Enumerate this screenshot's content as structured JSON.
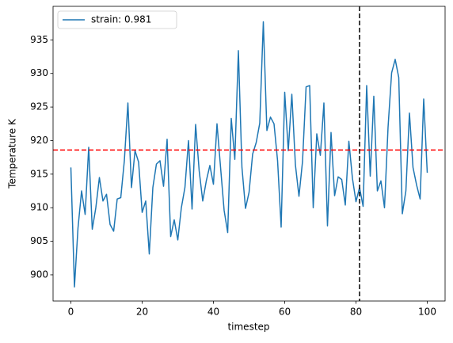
{
  "chart_data": {
    "type": "line",
    "xlabel": "timestep",
    "ylabel": "Temperature K",
    "x": [
      0,
      1,
      2,
      3,
      4,
      5,
      6,
      7,
      8,
      9,
      10,
      11,
      12,
      13,
      14,
      15,
      16,
      17,
      18,
      19,
      20,
      21,
      22,
      23,
      24,
      25,
      26,
      27,
      28,
      29,
      30,
      31,
      32,
      33,
      34,
      35,
      36,
      37,
      38,
      39,
      40,
      41,
      42,
      43,
      44,
      45,
      46,
      47,
      48,
      49,
      50,
      51,
      52,
      53,
      54,
      55,
      56,
      57,
      58,
      59,
      60,
      61,
      62,
      63,
      64,
      65,
      66,
      67,
      68,
      69,
      70,
      71,
      72,
      73,
      74,
      75,
      76,
      77,
      78,
      79,
      80,
      81,
      82,
      83,
      84,
      85,
      86,
      87,
      88,
      89,
      90,
      91,
      92,
      93,
      94,
      95,
      96,
      97,
      98,
      99,
      100
    ],
    "series": [
      {
        "name": "strain: 0.981",
        "color": "#1f77b4",
        "values": [
          916,
          898.2,
          907,
          912.5,
          909,
          919,
          906.8,
          910,
          914.5,
          911,
          912,
          907.5,
          906.5,
          911.3,
          911.5,
          917,
          925.6,
          913,
          918.5,
          916.8,
          909.3,
          911,
          903.1,
          913,
          916.5,
          917,
          913.2,
          920.2,
          905.7,
          908.2,
          905.2,
          910,
          913,
          920,
          909.8,
          922.4,
          915.5,
          911,
          914,
          916.3,
          913.5,
          922.5,
          916,
          909.6,
          906.3,
          923.3,
          917.2,
          933.4,
          916,
          909.9,
          912.3,
          918,
          919.7,
          922.6,
          937.7,
          921.5,
          923.5,
          922.5,
          917,
          907.1,
          927.2,
          918.5,
          926.9,
          916.4,
          911.7,
          916.9,
          928,
          928.2,
          910,
          921,
          917.8,
          925.6,
          907.3,
          921.2,
          911.8,
          914.6,
          914.2,
          910.4,
          919.9,
          914.4,
          910.9,
          913,
          910.2,
          928.2,
          914.7,
          926.6,
          912.5,
          914,
          910,
          922,
          930.1,
          932.1,
          929.4,
          909.1,
          912.5,
          924.1,
          916,
          913.4,
          911.3,
          926.2,
          915.2
        ]
      }
    ],
    "hline": {
      "y": 918.6,
      "color": "#ff0000"
    },
    "vline": {
      "x": 81,
      "color": "#000000"
    },
    "xlim": [
      -5,
      105
    ],
    "ylim": [
      896.1,
      940
    ],
    "xticks": [
      0,
      20,
      40,
      60,
      80,
      100
    ],
    "yticks": [
      900,
      905,
      910,
      915,
      920,
      925,
      930,
      935
    ],
    "legend": "upper left"
  }
}
